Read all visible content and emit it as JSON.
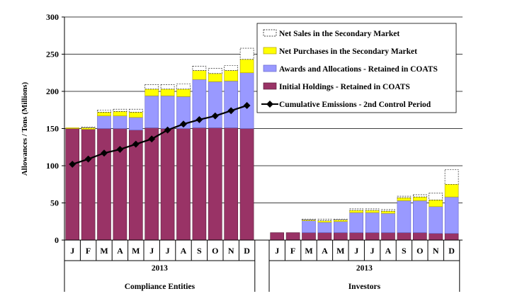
{
  "chart_data": {
    "type": "bar",
    "stacked": true,
    "ylabel": "Allowances / Tons (Millions)",
    "ylim": [
      0,
      300
    ],
    "yticks": [
      0,
      50,
      100,
      150,
      200,
      250,
      300
    ],
    "legend_position": "top-right",
    "groups": [
      {
        "name": "Compliance Entities",
        "year": "2013",
        "months": [
          "J",
          "F",
          "M",
          "A",
          "M",
          "J",
          "J",
          "A",
          "S",
          "O",
          "N",
          "D"
        ],
        "series": [
          {
            "name": "Initial Holdings - Retained in COATS",
            "color": "#993366",
            "values": [
              150,
              149,
              150,
              150,
              148,
              151,
              150,
              150,
              151,
              151,
              151,
              150
            ]
          },
          {
            "name": "Awards and Allocations - Retained in COATS",
            "color": "#9999ff",
            "values": [
              0,
              0,
              17,
              17,
              17,
              43,
              44,
              43,
              65,
              62,
              63,
              75
            ]
          },
          {
            "name": "Net Purchases in the Secondary Market",
            "color": "#ffff00",
            "values": [
              1,
              2,
              5,
              6,
              7,
              9,
              9,
              10,
              12,
              11,
              14,
              18
            ]
          },
          {
            "name": "Net Sales in the Secondary Market",
            "color": "#ffffff",
            "values": [
              0,
              1,
              3,
              3,
              4,
              6,
              6,
              7,
              6,
              7,
              7,
              15
            ]
          }
        ],
        "line": {
          "name": "Cumulative Emissions - 2nd Control Period",
          "color": "#000000",
          "values": [
            102,
            109,
            117,
            122,
            129,
            136,
            148,
            156,
            162,
            167,
            174,
            181
          ]
        }
      },
      {
        "name": "Investors",
        "year": "2013",
        "months": [
          "J",
          "F",
          "M",
          "A",
          "M",
          "J",
          "J",
          "A",
          "S",
          "O",
          "N",
          "D"
        ],
        "series": [
          {
            "name": "Initial Holdings - Retained in COATS",
            "color": "#993366",
            "values": [
              10,
              10,
              10,
              10,
              10,
              10,
              10,
              10,
              10,
              10,
              9,
              9
            ]
          },
          {
            "name": "Awards and Allocations - Retained in COATS",
            "color": "#9999ff",
            "values": [
              0,
              0,
              16,
              14,
              15,
              27,
              27,
              26,
              43,
              43,
              36,
              49
            ]
          },
          {
            "name": "Net Purchases in the Secondary Market",
            "color": "#ffff00",
            "values": [
              0,
              0,
              1,
              2,
              2,
              3,
              3,
              3,
              4,
              5,
              9,
              17
            ]
          },
          {
            "name": "Net Sales in the Secondary Market",
            "color": "#ffffff",
            "values": [
              0,
              0,
              1,
              2,
              1,
              2,
              2,
              2,
              2,
              3,
              9,
              20
            ]
          }
        ]
      }
    ]
  }
}
